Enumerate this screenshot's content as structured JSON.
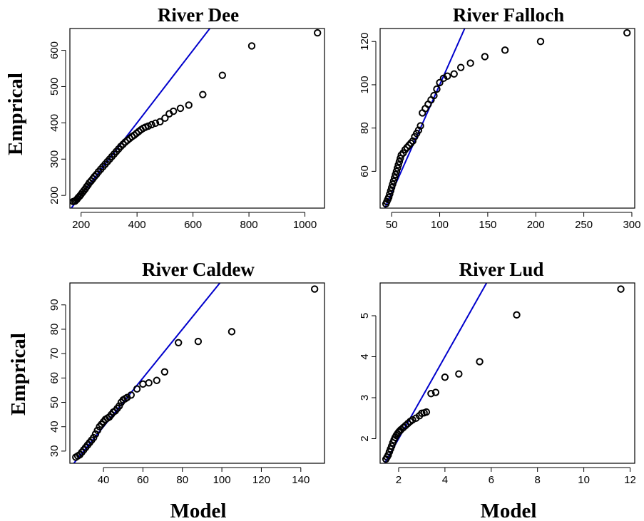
{
  "chart_data": [
    {
      "type": "scatter",
      "title": "River Dee",
      "xlabel": "",
      "ylabel": "Emprical",
      "xlim": [
        160,
        1070
      ],
      "ylim": [
        165,
        660
      ],
      "xticks": [
        200,
        400,
        600,
        800,
        1000
      ],
      "yticks": [
        200,
        300,
        400,
        500,
        600
      ],
      "reference_line": {
        "color": "#0000cc",
        "points": [
          [
            160,
            160
          ],
          [
            700,
            700
          ]
        ]
      },
      "points": [
        [
          172,
          183
        ],
        [
          178,
          184
        ],
        [
          182,
          187
        ],
        [
          186,
          190
        ],
        [
          190,
          194
        ],
        [
          195,
          198
        ],
        [
          200,
          203
        ],
        [
          205,
          208
        ],
        [
          210,
          213
        ],
        [
          215,
          218
        ],
        [
          220,
          224
        ],
        [
          225,
          229
        ],
        [
          230,
          235
        ],
        [
          236,
          240
        ],
        [
          242,
          246
        ],
        [
          248,
          252
        ],
        [
          255,
          258
        ],
        [
          262,
          265
        ],
        [
          270,
          272
        ],
        [
          278,
          279
        ],
        [
          286,
          286
        ],
        [
          294,
          293
        ],
        [
          302,
          300
        ],
        [
          310,
          307
        ],
        [
          318,
          314
        ],
        [
          326,
          321
        ],
        [
          334,
          328
        ],
        [
          342,
          335
        ],
        [
          350,
          341
        ],
        [
          358,
          347
        ],
        [
          366,
          352
        ],
        [
          374,
          357
        ],
        [
          382,
          362
        ],
        [
          390,
          366
        ],
        [
          398,
          371
        ],
        [
          406,
          376
        ],
        [
          414,
          381
        ],
        [
          422,
          385
        ],
        [
          430,
          388
        ],
        [
          440,
          391
        ],
        [
          452,
          395
        ],
        [
          466,
          399
        ],
        [
          482,
          403
        ],
        [
          500,
          413
        ],
        [
          515,
          425
        ],
        [
          530,
          432
        ],
        [
          555,
          440
        ],
        [
          585,
          449
        ],
        [
          635,
          478
        ],
        [
          705,
          531
        ],
        [
          810,
          612
        ],
        [
          1045,
          648
        ]
      ]
    },
    {
      "type": "scatter",
      "title": "River Falloch",
      "xlabel": "",
      "ylabel": "",
      "xlim": [
        38,
        303
      ],
      "ylim": [
        43,
        126
      ],
      "xticks": [
        50,
        100,
        150,
        200,
        250,
        300
      ],
      "yticks": [
        60,
        80,
        100,
        120
      ],
      "reference_line": {
        "color": "#0000cc",
        "points": [
          [
            38,
            38
          ],
          [
            140,
            140
          ]
        ]
      },
      "points": [
        [
          44,
          45
        ],
        [
          45,
          46
        ],
        [
          46,
          47
        ],
        [
          47,
          48
        ],
        [
          48,
          49.5
        ],
        [
          49,
          51
        ],
        [
          50,
          52.5
        ],
        [
          51,
          54
        ],
        [
          52,
          55.5
        ],
        [
          53,
          57
        ],
        [
          54,
          58.5
        ],
        [
          55,
          60
        ],
        [
          56,
          61.5
        ],
        [
          57,
          63
        ],
        [
          58,
          64.5
        ],
        [
          59,
          66
        ],
        [
          60,
          67.5
        ],
        [
          62,
          68.5
        ],
        [
          64,
          70
        ],
        [
          66,
          71
        ],
        [
          68,
          72
        ],
        [
          70,
          73
        ],
        [
          72,
          74
        ],
        [
          74,
          76
        ],
        [
          76,
          77.5
        ],
        [
          78,
          79
        ],
        [
          80,
          81
        ],
        [
          82,
          87
        ],
        [
          85,
          89
        ],
        [
          88,
          91
        ],
        [
          91,
          93
        ],
        [
          94,
          95
        ],
        [
          97,
          98
        ],
        [
          100,
          101
        ],
        [
          104,
          103
        ],
        [
          108,
          104
        ],
        [
          115,
          105
        ],
        [
          122,
          108
        ],
        [
          132,
          110
        ],
        [
          147,
          113
        ],
        [
          168,
          116
        ],
        [
          205,
          120
        ],
        [
          295,
          124
        ]
      ]
    },
    {
      "type": "scatter",
      "title": "River Caldew",
      "xlabel": "Model",
      "ylabel": "Emprical",
      "xlim": [
        23,
        152
      ],
      "ylim": [
        25,
        99
      ],
      "xticks": [
        40,
        60,
        80,
        100,
        120,
        140
      ],
      "yticks": [
        30,
        40,
        50,
        60,
        70,
        80,
        90
      ],
      "reference_line": {
        "color": "#0000cc",
        "points": [
          [
            23,
            23
          ],
          [
            110,
            110
          ]
        ]
      },
      "points": [
        [
          26,
          27.5
        ],
        [
          27,
          28
        ],
        [
          28,
          28.5
        ],
        [
          29,
          29.5
        ],
        [
          30,
          30.5
        ],
        [
          31,
          31.5
        ],
        [
          32,
          32.5
        ],
        [
          33,
          33.5
        ],
        [
          34,
          34.5
        ],
        [
          35,
          35.5
        ],
        [
          36,
          37
        ],
        [
          37,
          38.5
        ],
        [
          38,
          40
        ],
        [
          39,
          41
        ],
        [
          40,
          42
        ],
        [
          41,
          43
        ],
        [
          42,
          43.5
        ],
        [
          43,
          44
        ],
        [
          44,
          45
        ],
        [
          45,
          46
        ],
        [
          46,
          46.5
        ],
        [
          47,
          47.5
        ],
        [
          48,
          48.5
        ],
        [
          49,
          50
        ],
        [
          50,
          51
        ],
        [
          51,
          51.5
        ],
        [
          52,
          52
        ],
        [
          54,
          53
        ],
        [
          57,
          55.5
        ],
        [
          60,
          57.5
        ],
        [
          63,
          58
        ],
        [
          67,
          59
        ],
        [
          71,
          62.5
        ],
        [
          78,
          74.5
        ],
        [
          88,
          75
        ],
        [
          105,
          79
        ],
        [
          147,
          96.5
        ]
      ]
    },
    {
      "type": "scatter",
      "title": "River Lud",
      "xlabel": "Model",
      "ylabel": "",
      "xlim": [
        1.2,
        12.2
      ],
      "ylim": [
        1.4,
        5.8
      ],
      "xticks": [
        2,
        4,
        6,
        8,
        10,
        12
      ],
      "yticks": [
        2,
        3,
        4,
        5
      ],
      "reference_line": {
        "color": "#0000cc",
        "points": [
          [
            1.2,
            1.2
          ],
          [
            6.5,
            6.5
          ]
        ]
      },
      "points": [
        [
          1.45,
          1.5
        ],
        [
          1.5,
          1.55
        ],
        [
          1.55,
          1.6
        ],
        [
          1.6,
          1.68
        ],
        [
          1.65,
          1.75
        ],
        [
          1.7,
          1.82
        ],
        [
          1.75,
          1.9
        ],
        [
          1.8,
          1.97
        ],
        [
          1.85,
          2.03
        ],
        [
          1.9,
          2.08
        ],
        [
          1.95,
          2.12
        ],
        [
          2.0,
          2.16
        ],
        [
          2.05,
          2.19
        ],
        [
          2.1,
          2.22
        ],
        [
          2.2,
          2.27
        ],
        [
          2.3,
          2.32
        ],
        [
          2.4,
          2.37
        ],
        [
          2.5,
          2.42
        ],
        [
          2.6,
          2.46
        ],
        [
          2.75,
          2.5
        ],
        [
          2.9,
          2.56
        ],
        [
          3.0,
          2.62
        ],
        [
          3.1,
          2.63
        ],
        [
          3.2,
          2.65
        ],
        [
          3.4,
          3.1
        ],
        [
          3.6,
          3.13
        ],
        [
          4.0,
          3.5
        ],
        [
          4.6,
          3.58
        ],
        [
          5.5,
          3.88
        ],
        [
          7.1,
          5.02
        ],
        [
          11.6,
          5.65
        ]
      ]
    }
  ]
}
